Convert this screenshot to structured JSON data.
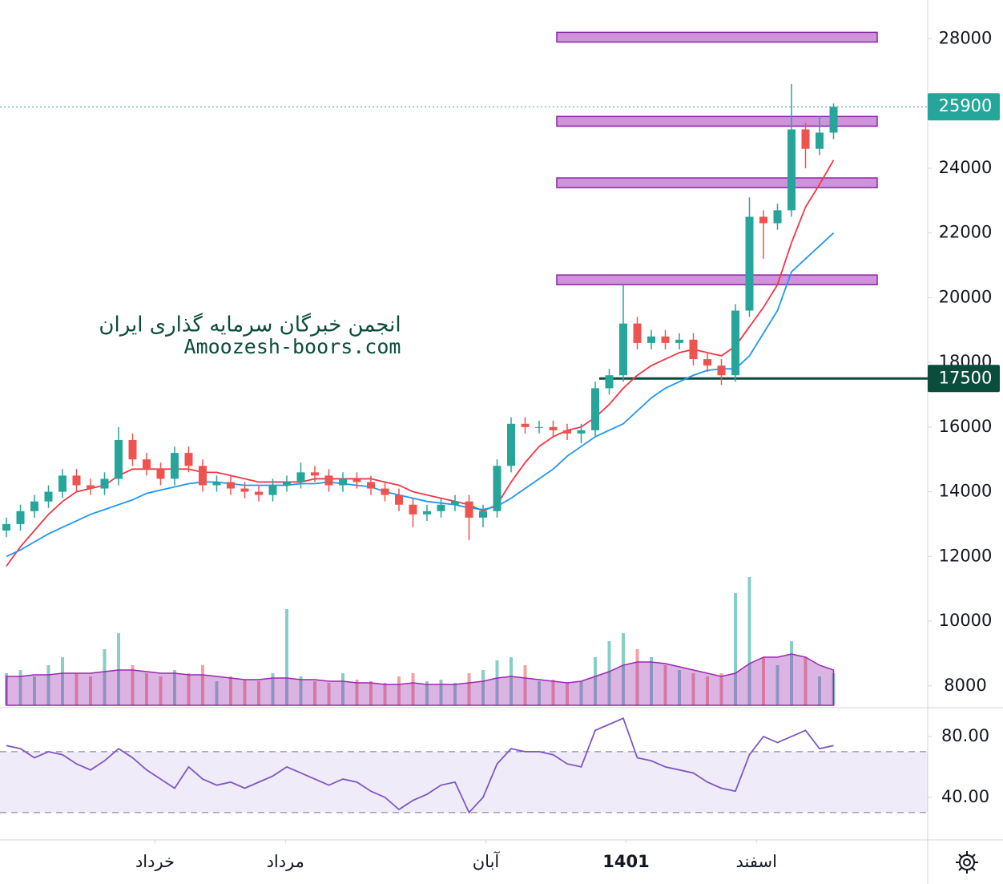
{
  "chart_data": {
    "type": "candlestick",
    "ylim": [
      7350,
      29200
    ],
    "yticks": [
      8000,
      10000,
      12000,
      14000,
      16000,
      18000,
      20000,
      22000,
      24000,
      26000,
      28000
    ],
    "xticks": [
      {
        "value": 10.6,
        "label": "خرداد"
      },
      {
        "value": 19.9,
        "label": "مرداد"
      },
      {
        "value": 34.2,
        "label": "آبان"
      },
      {
        "value": 44.2,
        "label": "1401"
      },
      {
        "value": 53.5,
        "label": "اسفند"
      }
    ],
    "up_color": "#26a69a",
    "down_color": "#ef5350",
    "open": [
      12800,
      13000,
      13400,
      13700,
      14000,
      14500,
      14200,
      14100,
      14400,
      15600,
      15000,
      14700,
      14400,
      15200,
      14800,
      14200,
      14300,
      14100,
      14000,
      13900,
      14200,
      14300,
      14600,
      14500,
      14200,
      14400,
      14300,
      14100,
      13900,
      13600,
      13300,
      13400,
      13600,
      13700,
      13200,
      13400,
      14800,
      16100,
      16000,
      16000,
      15900,
      15800,
      15900,
      17200,
      17600,
      19200,
      18600,
      18800,
      18600,
      18700,
      18100,
      17900,
      17600,
      19600,
      22500,
      22300,
      22700,
      25200,
      24600,
      25100
    ],
    "high": [
      13200,
      13600,
      13900,
      14200,
      14700,
      14700,
      14400,
      14600,
      16000,
      15800,
      15200,
      14900,
      15400,
      15400,
      15000,
      14500,
      14500,
      14300,
      14200,
      14400,
      14500,
      14900,
      14800,
      14700,
      14600,
      14600,
      14500,
      14300,
      14100,
      13800,
      13600,
      13800,
      13900,
      13900,
      13600,
      15000,
      16300,
      16300,
      16200,
      16200,
      16100,
      16100,
      17400,
      17800,
      20400,
      19400,
      19000,
      19000,
      18900,
      18900,
      18300,
      18100,
      19800,
      23100,
      22700,
      22900,
      26600,
      25400,
      25600,
      26000
    ],
    "low": [
      12600,
      12800,
      13200,
      13500,
      13800,
      14000,
      13900,
      13900,
      14200,
      14800,
      14500,
      14200,
      14200,
      14600,
      14000,
      14000,
      13900,
      13800,
      13700,
      13700,
      14000,
      14100,
      14300,
      14000,
      14000,
      14100,
      13900,
      13700,
      13400,
      12900,
      13100,
      13200,
      13400,
      12500,
      12900,
      13200,
      14600,
      15800,
      15800,
      15700,
      15600,
      15500,
      15700,
      17000,
      17400,
      18400,
      18400,
      18400,
      18400,
      17900,
      17700,
      17300,
      17400,
      19400,
      21200,
      22100,
      22500,
      24000,
      24400,
      24900
    ],
    "close": [
      13000,
      13400,
      13700,
      14000,
      14500,
      14200,
      14100,
      14400,
      15600,
      15000,
      14700,
      14400,
      15200,
      14800,
      14200,
      14300,
      14100,
      14000,
      13900,
      14200,
      14300,
      14600,
      14500,
      14200,
      14400,
      14300,
      14100,
      13900,
      13600,
      13300,
      13400,
      13600,
      13700,
      13200,
      13400,
      14800,
      16100,
      16000,
      16000,
      15900,
      15800,
      15900,
      17200,
      17600,
      19200,
      18600,
      18800,
      18600,
      18700,
      18100,
      17900,
      17600,
      19600,
      22500,
      22300,
      22700,
      25200,
      24600,
      25100,
      25900
    ],
    "ma_fast": {
      "color": "#f23645",
      "values": [
        11700,
        12300,
        12800,
        13300,
        13700,
        14000,
        14100,
        14200,
        14500,
        14700,
        14700,
        14700,
        14700,
        14700,
        14600,
        14600,
        14500,
        14400,
        14300,
        14300,
        14300,
        14300,
        14400,
        14400,
        14400,
        14400,
        14400,
        14300,
        14200,
        14000,
        13900,
        13800,
        13700,
        13600,
        13400,
        13600,
        14300,
        14900,
        15400,
        15700,
        15900,
        16000,
        16300,
        16700,
        17200,
        17600,
        17900,
        18100,
        18300,
        18400,
        18300,
        18200,
        18500,
        19100,
        19700,
        20400,
        21700,
        22800,
        23500,
        24250
      ]
    },
    "ma_slow": {
      "color": "#2196f3",
      "values": [
        12000,
        12200,
        12450,
        12700,
        12900,
        13100,
        13300,
        13450,
        13600,
        13750,
        13950,
        14050,
        14150,
        14250,
        14300,
        14300,
        14250,
        14200,
        14200,
        14200,
        14200,
        14250,
        14250,
        14300,
        14250,
        14200,
        14150,
        14000,
        13900,
        13800,
        13700,
        13650,
        13600,
        13500,
        13450,
        13550,
        13800,
        14100,
        14400,
        14700,
        15100,
        15400,
        15700,
        15900,
        16100,
        16500,
        16900,
        17200,
        17400,
        17600,
        17750,
        17800,
        17800,
        18200,
        18900,
        19600,
        20800,
        21200,
        21600,
        22000
      ]
    },
    "volume": {
      "vlim": [
        0,
        100
      ],
      "ma_color": "#9c27b0",
      "values": [
        20,
        22,
        18,
        25,
        30,
        20,
        18,
        35,
        45,
        25,
        20,
        18,
        22,
        20,
        25,
        15,
        18,
        16,
        15,
        20,
        60,
        18,
        15,
        14,
        20,
        16,
        15,
        14,
        18,
        20,
        15,
        16,
        14,
        20,
        22,
        28,
        30,
        25,
        15,
        16,
        14,
        15,
        30,
        40,
        45,
        35,
        30,
        25,
        22,
        20,
        18,
        20,
        70,
        80,
        30,
        25,
        40,
        30,
        18,
        20
      ],
      "ma": [
        18,
        18,
        19,
        19,
        20,
        20,
        20,
        21,
        22,
        22,
        21,
        20,
        20,
        19,
        19,
        18,
        17,
        16,
        16,
        17,
        17,
        16,
        16,
        15,
        15,
        14,
        14,
        13,
        13,
        14,
        13,
        13,
        13,
        14,
        15,
        17,
        18,
        17,
        16,
        15,
        14,
        15,
        18,
        21,
        25,
        27,
        27,
        26,
        24,
        22,
        20,
        18,
        20,
        26,
        30,
        30,
        32,
        30,
        25,
        22
      ]
    },
    "rsi": {
      "color": "#7e57c2",
      "ylim": [
        12,
        98.4
      ],
      "yticks": [
        {
          "value": 40,
          "label": "40.00"
        },
        {
          "value": 80,
          "label": "80.00"
        }
      ],
      "bands": [
        30,
        70
      ],
      "values": [
        74,
        72,
        66,
        70,
        68,
        62,
        58,
        64,
        72,
        66,
        58,
        52,
        46,
        60,
        52,
        48,
        50,
        46,
        50,
        54,
        60,
        56,
        52,
        48,
        52,
        50,
        44,
        40,
        32,
        38,
        42,
        48,
        50,
        30,
        40,
        62,
        72,
        70,
        70,
        68,
        62,
        60,
        84,
        88,
        92,
        66,
        64,
        60,
        58,
        56,
        50,
        46,
        44,
        68,
        80,
        76,
        80,
        84,
        72,
        74
      ]
    },
    "zones": [
      [
        27900,
        28200
      ],
      [
        25300,
        25600
      ],
      [
        23400,
        23700
      ],
      [
        20400,
        20700
      ]
    ],
    "zone_color": "#ce93d8",
    "last_price": 25900,
    "support": 17500,
    "watermark": [
      "انجمن خبرگان سرمایه گذاری ایران",
      "Amoozesh-boors.com"
    ]
  }
}
